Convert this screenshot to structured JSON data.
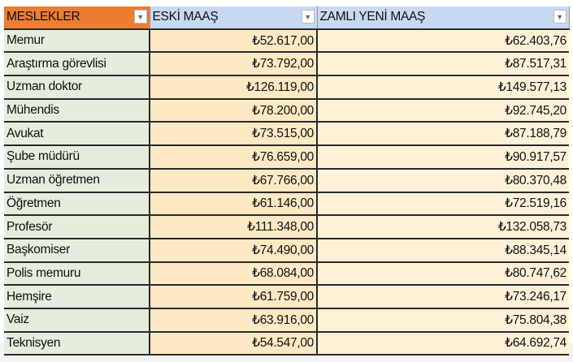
{
  "table": {
    "columns": [
      "MESLEKLER",
      "ESKİ MAAŞ",
      "ZAMLI YENİ MAAŞ"
    ],
    "filter_icon": "dropdown-arrow-icon",
    "rows": [
      [
        "Memur",
        "₺52.617,00",
        "₺62.403,76"
      ],
      [
        "Araştırma görevlisi",
        "₺73.792,00",
        "₺87.517,31"
      ],
      [
        "Uzman doktor",
        "₺126.119,00",
        "₺149.577,13"
      ],
      [
        "Mühendis",
        "₺78.200,00",
        "₺92.745,20"
      ],
      [
        "Avukat",
        "₺73.515,00",
        "₺87.188,79"
      ],
      [
        "Şube müdürü",
        "₺76.659,00",
        "₺90.917,57"
      ],
      [
        "Uzman öğretmen",
        "₺67.766,00",
        "₺80.370,48"
      ],
      [
        "Öğretmen",
        "₺61.146,00",
        "₺72.519,16"
      ],
      [
        "Profesör",
        "₺111.348,00",
        "₺132.058,73"
      ],
      [
        "Başkomiser",
        "₺74.490,00",
        "₺88.345,14"
      ],
      [
        "Polis memuru",
        "₺68.084,00",
        "₺80.747,62"
      ],
      [
        "Hemşire",
        "₺61.759,00",
        "₺73.246,17"
      ],
      [
        "Vaiz",
        "₺63.916,00",
        "₺75.804,38"
      ],
      [
        "Teknisyen",
        "₺54.547,00",
        "₺64.692,74"
      ]
    ]
  },
  "colors": {
    "header_first": "#ed7d31",
    "header_other": "#c6d9f1",
    "first_col": "#e6eddf",
    "values": "#fde9c4"
  }
}
